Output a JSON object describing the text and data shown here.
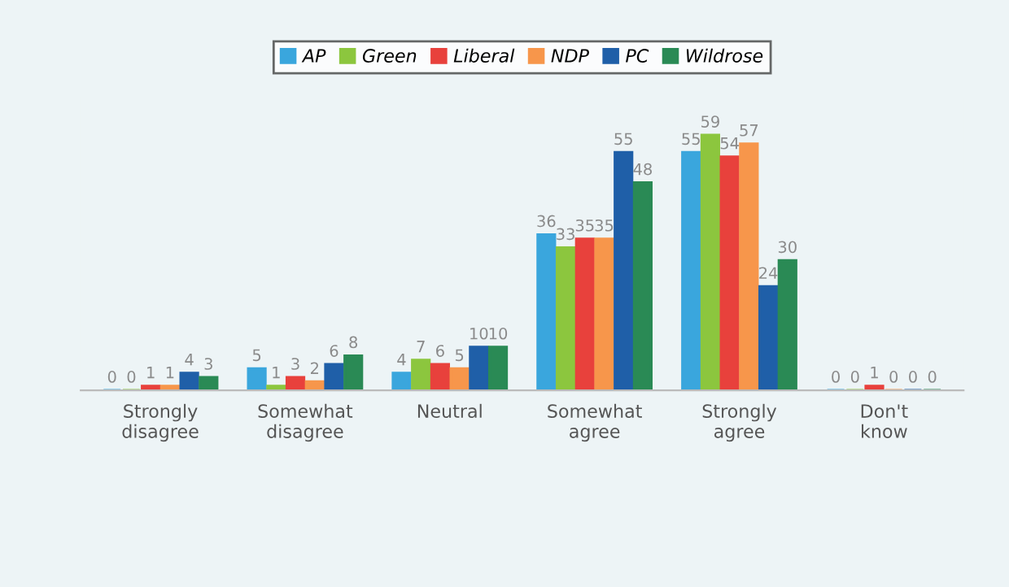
{
  "chart_data": {
    "type": "bar",
    "categories": [
      "Strongly\ndisagree",
      "Somewhat\ndisagree",
      "Neutral",
      "Somewhat\nagree",
      "Strongly\nagree",
      "Don't\nknow"
    ],
    "series": [
      {
        "name": "AP",
        "color": "#3aa6dd",
        "values": [
          0,
          5,
          4,
          36,
          55,
          0
        ]
      },
      {
        "name": "Green",
        "color": "#8cc63e",
        "values": [
          0,
          1,
          7,
          33,
          59,
          0
        ]
      },
      {
        "name": "Liberal",
        "color": "#e8413c",
        "values": [
          1,
          3,
          6,
          35,
          54,
          1
        ]
      },
      {
        "name": "NDP",
        "color": "#f7964b",
        "values": [
          1,
          2,
          5,
          35,
          57,
          0
        ]
      },
      {
        "name": "PC",
        "color": "#1f5fa8",
        "values": [
          4,
          6,
          10,
          55,
          24,
          0
        ]
      },
      {
        "name": "Wildrose",
        "color": "#2a8a55",
        "values": [
          3,
          8,
          10,
          48,
          30,
          0
        ]
      }
    ],
    "data_labels": true,
    "legend": "top",
    "grid": false
  }
}
